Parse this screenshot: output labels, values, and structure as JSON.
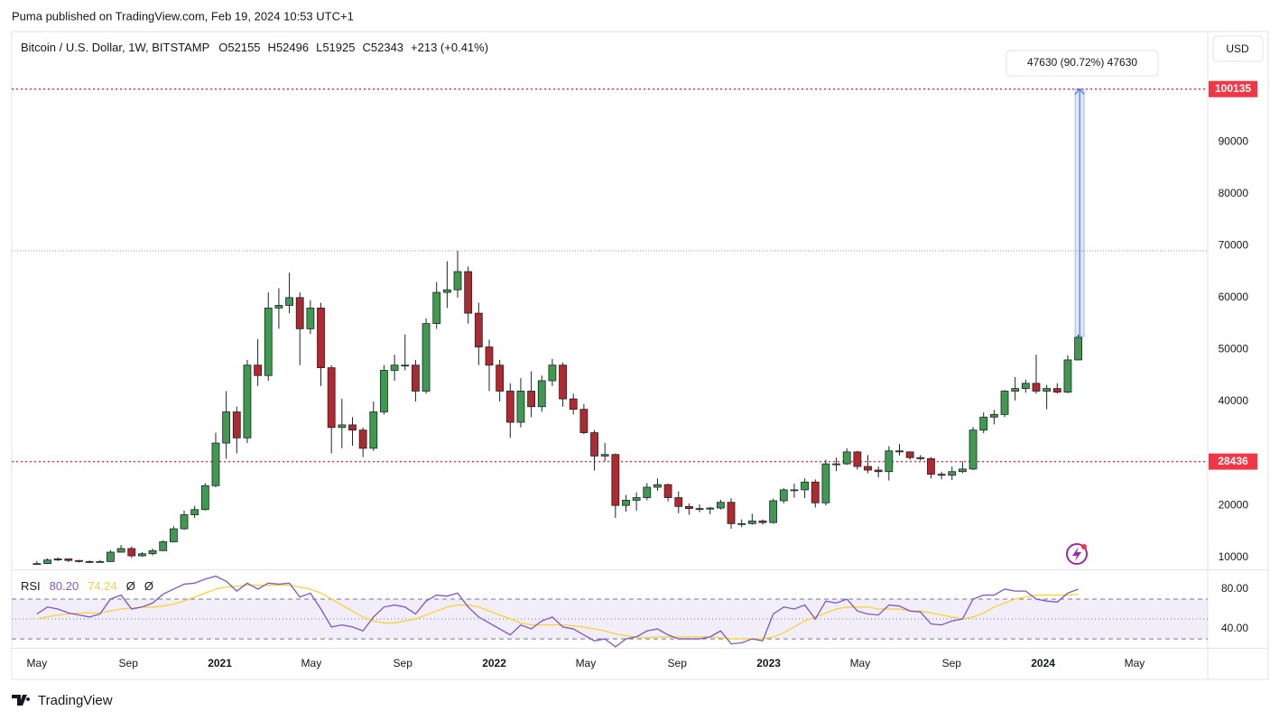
{
  "header": {
    "text": "Puma published on TradingView.com, Feb 19, 2024 10:53 UTC+1"
  },
  "footer": {
    "brand": "TradingView"
  },
  "currency_button": "USD",
  "legend": {
    "symbol": "Bitcoin / U.S. Dollar, 1W, BITSTAMP",
    "quote": [
      {
        "label": "O",
        "value": 52155
      },
      {
        "label": "H",
        "value": 52496
      },
      {
        "label": "L",
        "value": 51925
      },
      {
        "label": "C",
        "value": 52343
      }
    ],
    "change": "+213 (+0.41%)"
  },
  "chart_data": [
    {
      "type": "candlestick",
      "up_color": "#3d9a4f",
      "down_color": "#b2282e",
      "border_color": "#1e222d",
      "xlim": [
        2.9,
        55.2
      ],
      "xticks": [
        {
          "value": 4,
          "label": "May"
        },
        {
          "value": 8,
          "label": "Sep"
        },
        {
          "value": 12,
          "label": "2021"
        },
        {
          "value": 16,
          "label": "May"
        },
        {
          "value": 20,
          "label": "Sep"
        },
        {
          "value": 24,
          "label": "2022"
        },
        {
          "value": 28,
          "label": "May"
        },
        {
          "value": 32,
          "label": "Sep"
        },
        {
          "value": 36,
          "label": "2023"
        },
        {
          "value": 40,
          "label": "May"
        },
        {
          "value": 44,
          "label": "Sep"
        },
        {
          "value": 48,
          "label": "2024"
        },
        {
          "value": 52,
          "label": "May"
        }
      ],
      "ylim": [
        7700,
        111200
      ],
      "yticks": [
        10000,
        20000,
        40000,
        50000,
        60000,
        70000,
        80000,
        90000
      ],
      "price_lines": [
        {
          "value": 100135,
          "color": "#f23645",
          "badge": true
        },
        {
          "value": 28436,
          "color": "#f23645",
          "badge": true
        },
        {
          "value": 69000,
          "color": "#9598a1",
          "badge": false
        }
      ],
      "measure": {
        "x": 49.6,
        "from": 52505,
        "to": 100135,
        "label": "47630 (90.72%) 47630",
        "color": "#2962ff"
      },
      "x": [
        4.0,
        4.46,
        4.92,
        5.38,
        5.84,
        6.3,
        6.76,
        7.22,
        7.68,
        8.14,
        8.6,
        9.06,
        9.52,
        9.98,
        10.44,
        10.9,
        11.36,
        11.82,
        12.28,
        12.74,
        13.2,
        13.66,
        14.12,
        14.58,
        15.04,
        15.5,
        15.96,
        16.42,
        16.88,
        17.34,
        17.8,
        18.26,
        18.72,
        19.18,
        19.64,
        20.1,
        20.56,
        21.02,
        21.48,
        21.94,
        22.4,
        22.86,
        23.32,
        23.78,
        24.24,
        24.7,
        25.16,
        25.62,
        26.08,
        26.54,
        27.0,
        27.46,
        27.92,
        28.38,
        28.84,
        29.3,
        29.76,
        30.22,
        30.68,
        31.14,
        31.6,
        32.06,
        32.52,
        32.98,
        33.44,
        33.9,
        34.36,
        34.82,
        35.28,
        35.74,
        36.2,
        36.66,
        37.12,
        37.58,
        38.04,
        38.5,
        38.96,
        39.42,
        39.88,
        40.34,
        40.8,
        41.26,
        41.72,
        42.18,
        42.64,
        43.1,
        43.56,
        44.02,
        44.48,
        44.94,
        45.4,
        45.86,
        46.32,
        46.78,
        47.24,
        47.7,
        48.16,
        48.62,
        49.08,
        49.54
      ],
      "ohlc": [
        [
          8700,
          9300,
          8600,
          8800
        ],
        [
          8800,
          9800,
          8700,
          9500
        ],
        [
          9500,
          10000,
          9300,
          9700
        ],
        [
          9700,
          9800,
          9100,
          9400
        ],
        [
          9400,
          9500,
          9000,
          9200
        ],
        [
          9200,
          9400,
          8900,
          9100
        ],
        [
          9100,
          9500,
          9000,
          9200
        ],
        [
          9200,
          11400,
          9100,
          11000
        ],
        [
          11000,
          12400,
          10900,
          11700
        ],
        [
          11700,
          12100,
          9900,
          10300
        ],
        [
          10300,
          11000,
          10100,
          10700
        ],
        [
          10700,
          11700,
          10400,
          11300
        ],
        [
          11300,
          13300,
          11200,
          13000
        ],
        [
          13000,
          16000,
          12900,
          15500
        ],
        [
          15500,
          19000,
          15300,
          18200
        ],
        [
          18200,
          19900,
          17600,
          19200
        ],
        [
          19200,
          24300,
          19000,
          23800
        ],
        [
          23800,
          34000,
          23500,
          32000
        ],
        [
          32000,
          42000,
          29000,
          38000
        ],
        [
          38000,
          39000,
          30000,
          33000
        ],
        [
          33000,
          48000,
          32000,
          47000
        ],
        [
          47000,
          52000,
          43000,
          45000
        ],
        [
          45000,
          61000,
          44000,
          58000
        ],
        [
          58000,
          61800,
          54000,
          58500
        ],
        [
          58500,
          64800,
          57000,
          60000
        ],
        [
          60000,
          61000,
          47000,
          54000
        ],
        [
          54000,
          59500,
          53000,
          58000
        ],
        [
          58000,
          59000,
          43000,
          46500
        ],
        [
          46500,
          47000,
          30000,
          35000
        ],
        [
          35000,
          40500,
          31000,
          35500
        ],
        [
          35500,
          37000,
          31500,
          34500
        ],
        [
          34500,
          35000,
          29300,
          31000
        ],
        [
          31000,
          40000,
          30500,
          38000
        ],
        [
          38000,
          47000,
          37500,
          46000
        ],
        [
          46000,
          49000,
          44000,
          47000
        ],
        [
          47000,
          52900,
          46000,
          47000
        ],
        [
          47000,
          48000,
          40000,
          42000
        ],
        [
          42000,
          56000,
          41500,
          55000
        ],
        [
          55000,
          63000,
          54000,
          61000
        ],
        [
          61000,
          67000,
          58000,
          61500
        ],
        [
          61500,
          69000,
          60000,
          65000
        ],
        [
          65000,
          66000,
          55000,
          57000
        ],
        [
          57000,
          59000,
          47000,
          50500
        ],
        [
          50500,
          51900,
          42000,
          47000
        ],
        [
          47000,
          48000,
          40000,
          42000
        ],
        [
          42000,
          43500,
          33000,
          36000
        ],
        [
          36000,
          44500,
          35000,
          42000
        ],
        [
          42000,
          45800,
          37000,
          39000
        ],
        [
          39000,
          45000,
          38000,
          44000
        ],
        [
          44000,
          48200,
          43000,
          47000
        ],
        [
          47000,
          47500,
          39000,
          40500
        ],
        [
          40500,
          41500,
          37500,
          38500
        ],
        [
          38500,
          39500,
          33700,
          34000
        ],
        [
          34000,
          34500,
          26700,
          29500
        ],
        [
          29500,
          32000,
          28500,
          29800
        ],
        [
          29800,
          30000,
          17600,
          20000
        ],
        [
          20000,
          22000,
          18800,
          21000
        ],
        [
          21000,
          22500,
          19000,
          21500
        ],
        [
          21500,
          24300,
          21000,
          23500
        ],
        [
          23500,
          25200,
          22800,
          24000
        ],
        [
          24000,
          24200,
          20800,
          21500
        ],
        [
          21500,
          22700,
          18500,
          19800
        ],
        [
          19800,
          20400,
          18200,
          19400
        ],
        [
          19400,
          20200,
          18700,
          19300
        ],
        [
          19300,
          19700,
          18300,
          19500
        ],
        [
          19500,
          21100,
          19200,
          20600
        ],
        [
          20600,
          21400,
          15500,
          16500
        ],
        [
          16500,
          17300,
          15800,
          16500
        ],
        [
          16500,
          18400,
          16300,
          17000
        ],
        [
          17000,
          17300,
          16300,
          16700
        ],
        [
          16700,
          21300,
          16500,
          20900
        ],
        [
          20900,
          23300,
          20400,
          23000
        ],
        [
          23000,
          24200,
          21500,
          23000
        ],
        [
          23000,
          25200,
          21400,
          24500
        ],
        [
          24500,
          25000,
          19600,
          20500
        ],
        [
          20500,
          28800,
          20000,
          28000
        ],
        [
          28000,
          29200,
          26600,
          28000
        ],
        [
          28000,
          31000,
          27800,
          30300
        ],
        [
          30300,
          30500,
          26900,
          27500
        ],
        [
          27500,
          29700,
          26200,
          26800
        ],
        [
          26800,
          27500,
          25400,
          26500
        ],
        [
          26500,
          31400,
          24800,
          30500
        ],
        [
          30500,
          31800,
          29600,
          30300
        ],
        [
          30300,
          30400,
          28800,
          29200
        ],
        [
          29200,
          29700,
          28600,
          29000
        ],
        [
          29000,
          29300,
          25200,
          26000
        ],
        [
          26000,
          26500,
          25000,
          25800
        ],
        [
          25800,
          27500,
          24900,
          26500
        ],
        [
          26500,
          28500,
          26200,
          27000
        ],
        [
          27000,
          35100,
          26800,
          34500
        ],
        [
          34500,
          37900,
          33900,
          37000
        ],
        [
          37000,
          38400,
          35600,
          37500
        ],
        [
          37500,
          42200,
          37000,
          42000
        ],
        [
          42000,
          44700,
          40200,
          42500
        ],
        [
          42500,
          44200,
          41700,
          43500
        ],
        [
          43500,
          49000,
          41500,
          42000
        ],
        [
          42000,
          43200,
          38500,
          42500
        ],
        [
          42500,
          43500,
          41500,
          41800
        ],
        [
          41800,
          48900,
          41600,
          48000
        ],
        [
          48000,
          52900,
          47900,
          52343
        ]
      ]
    },
    {
      "type": "line",
      "title": "RSI",
      "ylim": [
        21,
        99
      ],
      "yticks": [
        {
          "value": 80,
          "label": "80.00"
        },
        {
          "value": 40,
          "label": "40.00"
        }
      ],
      "bands": [
        70,
        50,
        30
      ],
      "band_color": "#7e57c2",
      "placeholders": [
        "Ø",
        "Ø"
      ],
      "series": [
        {
          "name": "80.20",
          "color": "#7e57c2",
          "values": [
            55,
            62,
            60,
            56,
            54,
            52,
            55,
            70,
            74,
            60,
            62,
            66,
            75,
            80,
            85,
            86,
            90,
            93,
            88,
            78,
            86,
            80,
            86,
            85,
            86,
            72,
            76,
            60,
            42,
            44,
            42,
            38,
            52,
            62,
            64,
            62,
            55,
            68,
            74,
            73,
            76,
            62,
            52,
            46,
            40,
            34,
            44,
            40,
            48,
            52,
            42,
            40,
            34,
            28,
            30,
            22,
            30,
            32,
            38,
            40,
            34,
            30,
            30,
            30,
            32,
            38,
            25,
            26,
            30,
            28,
            55,
            62,
            60,
            64,
            50,
            68,
            66,
            70,
            58,
            55,
            54,
            64,
            63,
            58,
            57,
            45,
            44,
            48,
            50,
            70,
            74,
            74,
            80,
            78,
            78,
            70,
            68,
            67,
            76,
            80
          ]
        },
        {
          "name": "74.24",
          "color": "#f7d23a",
          "values": [
            50,
            52,
            54,
            55,
            56,
            56,
            56,
            58,
            60,
            61,
            62,
            62,
            63,
            65,
            68,
            72,
            76,
            80,
            82,
            83,
            84,
            84,
            84,
            84,
            84,
            82,
            80,
            76,
            70,
            64,
            58,
            52,
            48,
            46,
            46,
            48,
            50,
            54,
            58,
            62,
            64,
            64,
            62,
            58,
            54,
            50,
            46,
            44,
            44,
            44,
            44,
            43,
            42,
            40,
            38,
            35,
            33,
            32,
            31,
            32,
            32,
            32,
            32,
            32,
            32,
            31,
            30,
            30,
            30,
            30,
            32,
            36,
            42,
            48,
            52,
            56,
            60,
            62,
            62,
            62,
            60,
            60,
            60,
            58,
            58,
            56,
            54,
            52,
            50,
            52,
            56,
            62,
            66,
            70,
            72,
            74,
            74,
            74,
            74,
            75
          ]
        }
      ]
    }
  ]
}
